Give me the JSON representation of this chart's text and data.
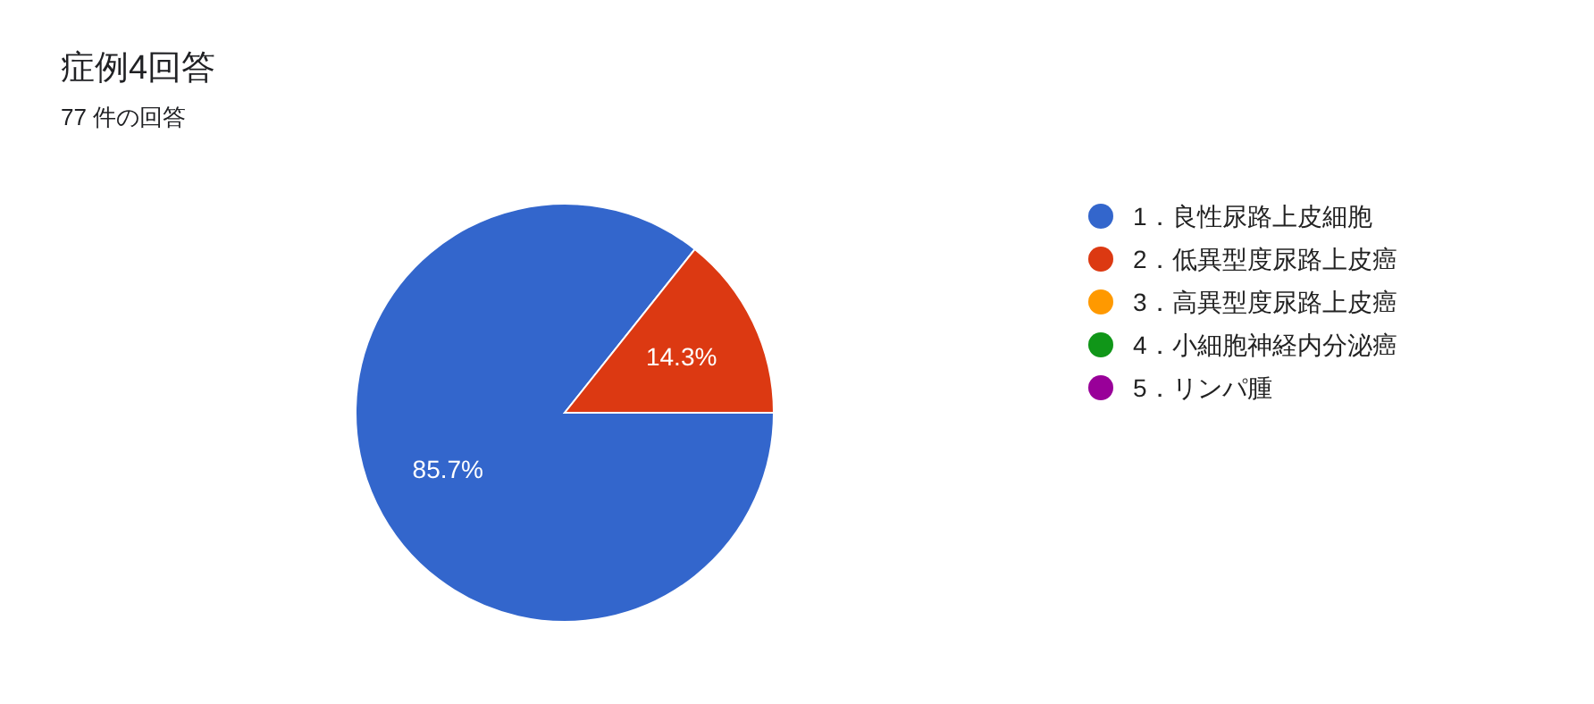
{
  "chart_data": {
    "type": "pie",
    "title": "症例4回答",
    "subtitle": "77 件の回答",
    "categories": [
      "1．良性尿路上皮細胞",
      "2．低異型度尿路上皮癌",
      "3．高異型度尿路上皮癌",
      "4．小細胞神経内分泌癌",
      "5．リンパ腫"
    ],
    "values": [
      85.7,
      14.3,
      0,
      0,
      0
    ],
    "colors": [
      "#3366cc",
      "#dc3912",
      "#ff9900",
      "#109618",
      "#990099"
    ],
    "value_labels": [
      "85.7%",
      "14.3%",
      null,
      null,
      null
    ],
    "legend": "right"
  }
}
